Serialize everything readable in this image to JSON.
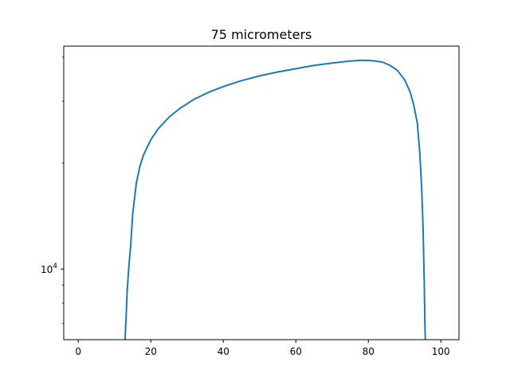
{
  "chart_data": {
    "type": "line",
    "title": "75 micrometers",
    "xlabel": "",
    "ylabel": "",
    "xlim": [
      -4,
      105
    ],
    "ylim": [
      6300,
      43000
    ],
    "yscale": "log",
    "grid": false,
    "x_ticks": [
      0,
      20,
      40,
      60,
      80,
      100
    ],
    "y_ticks": [
      {
        "value": 10000,
        "base": "10",
        "exp": "4"
      }
    ],
    "series": [
      {
        "color": "#1f77b4",
        "x": [
          12.9,
          13.2,
          13.5,
          14.0,
          14.5,
          15.0,
          16.0,
          17.0,
          18.0,
          20.0,
          22.0,
          25.0,
          28.0,
          32.0,
          36.0,
          40.0,
          45.0,
          50.0,
          55.0,
          60.0,
          65.0,
          70.0,
          75.0,
          78.0,
          80.0,
          82.0,
          84.0,
          86.0,
          88.0,
          90.0,
          91.5,
          92.5,
          93.5,
          94.2,
          94.7,
          95.1,
          95.4,
          95.6,
          95.7
        ],
        "y": [
          6300,
          7300,
          8700,
          10300,
          11800,
          14300,
          17500,
          19600,
          21100,
          23300,
          25000,
          27000,
          28600,
          30400,
          31800,
          33000,
          34300,
          35400,
          36300,
          37100,
          37900,
          38500,
          39000,
          39200,
          39150,
          39000,
          38700,
          37900,
          36700,
          34500,
          31900,
          29300,
          26000,
          21300,
          17000,
          13000,
          9300,
          7000,
          6300
        ]
      }
    ]
  }
}
